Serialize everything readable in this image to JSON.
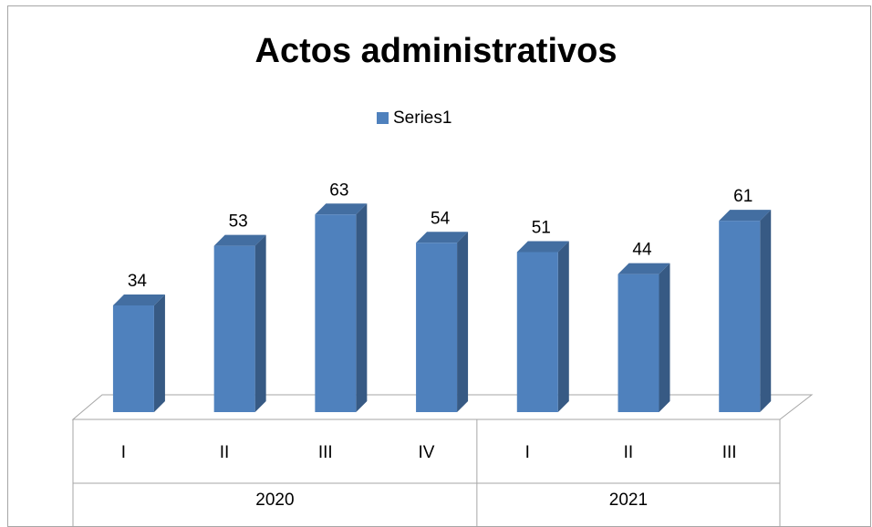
{
  "chart_data": {
    "type": "bar",
    "title": "Actos administrativos",
    "categories": [
      "I",
      "II",
      "III",
      "IV",
      "I",
      "II",
      "III"
    ],
    "groups": [
      "2020",
      "2020",
      "2020",
      "2020",
      "2021",
      "2021",
      "2021"
    ],
    "series": [
      {
        "name": "Series1",
        "color": "#4f81bd",
        "values": [
          34,
          53,
          63,
          54,
          51,
          44,
          61
        ]
      }
    ],
    "legend": "top",
    "grid": false
  }
}
